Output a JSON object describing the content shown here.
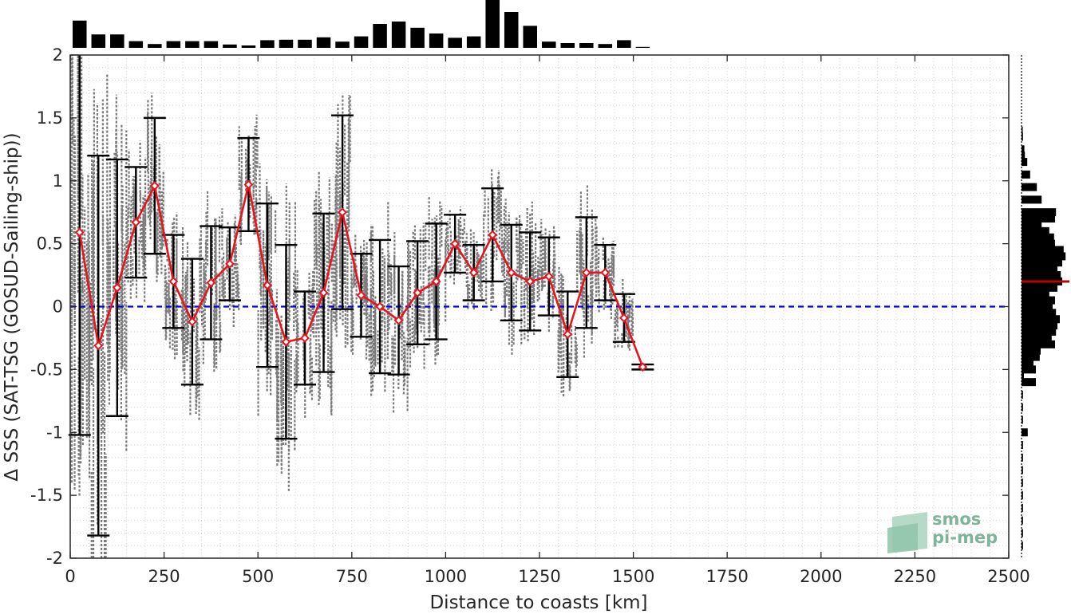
{
  "chart_data": {
    "type": "errorbar-line",
    "xlabel": "Distance to coasts [km]",
    "ylabel": "Δ SSS (SAT-TSG (GOSUD-Sailing-ship))",
    "xlim": [
      0,
      2500
    ],
    "ylim": [
      -2,
      2
    ],
    "x_ticks": [
      0,
      250,
      500,
      750,
      1000,
      1250,
      1500,
      1750,
      2000,
      2250,
      2500
    ],
    "y_ticks": [
      2,
      1.5,
      1,
      0.5,
      0,
      -0.5,
      -1,
      -1.5,
      -2
    ],
    "x_tick_labels": [
      "0",
      "250",
      "500",
      "750",
      "1000",
      "1250",
      "1500",
      "1750",
      "2000",
      "2250",
      "2500"
    ],
    "y_tick_labels": [
      "2",
      "1.5",
      "1",
      "0.5",
      "0",
      "-0.5",
      "-1",
      "-1.5",
      "-2"
    ],
    "grid": true,
    "reference_line": {
      "y": 0,
      "color": "#0000ee",
      "style": "dashed"
    },
    "colors": {
      "mean": "#e8141d",
      "errorbar": "#000000",
      "scatter": "#7a7a7a",
      "hist": "#000000",
      "hist_mean": "#c00000"
    },
    "series": [
      {
        "x": [
          25,
          75,
          125,
          175,
          225,
          275,
          325,
          375,
          425,
          475,
          525,
          575,
          625,
          675,
          725,
          775,
          825,
          875,
          925,
          975,
          1025,
          1075,
          1125,
          1175,
          1225,
          1275,
          1325,
          1375,
          1425,
          1475,
          1525
        ],
        "mean": [
          0.59,
          -0.31,
          0.15,
          0.67,
          0.96,
          0.2,
          -0.12,
          0.19,
          0.34,
          0.97,
          0.17,
          -0.28,
          -0.25,
          0.11,
          0.75,
          0.09,
          0.0,
          -0.11,
          0.11,
          0.2,
          0.5,
          0.27,
          0.57,
          0.27,
          0.2,
          0.24,
          -0.22,
          0.27,
          0.27,
          -0.09,
          -0.48
        ],
        "std": [
          1.61,
          1.51,
          1.02,
          0.44,
          0.54,
          0.37,
          0.5,
          0.45,
          0.29,
          0.37,
          0.65,
          0.77,
          0.37,
          0.63,
          0.77,
          0.33,
          0.53,
          0.43,
          0.41,
          0.46,
          0.23,
          0.22,
          0.37,
          0.38,
          0.39,
          0.31,
          0.34,
          0.44,
          0.22,
          0.19,
          0.02
        ]
      }
    ],
    "scatter_note": "dense gray individual samples",
    "top_histogram": {
      "bin_centers": [
        25,
        75,
        125,
        175,
        225,
        275,
        325,
        375,
        425,
        475,
        525,
        575,
        625,
        675,
        725,
        775,
        825,
        875,
        925,
        975,
        1025,
        1075,
        1125,
        1175,
        1225,
        1275,
        1325,
        1375,
        1425,
        1475,
        1525
      ],
      "values": [
        0.57,
        0.28,
        0.28,
        0.14,
        0.08,
        0.14,
        0.14,
        0.14,
        0.07,
        0.05,
        0.16,
        0.17,
        0.17,
        0.22,
        0.13,
        0.24,
        0.5,
        0.55,
        0.42,
        0.3,
        0.21,
        0.24,
        1.0,
        0.75,
        0.46,
        0.13,
        0.1,
        0.1,
        0.08,
        0.16,
        0.02
      ]
    },
    "right_histogram": {
      "bin_centers": [
        1.4,
        1.35,
        1.25,
        1.2,
        1.15,
        1.05,
        0.95,
        0.85,
        0.75,
        0.7,
        0.65,
        0.6,
        0.55,
        0.5,
        0.45,
        0.4,
        0.35,
        0.3,
        0.25,
        0.2,
        0.15,
        0.1,
        0.05,
        0.0,
        -0.05,
        -0.1,
        -0.15,
        -0.2,
        -0.25,
        -0.3,
        -0.35,
        -0.4,
        -0.45,
        -0.5,
        -0.55,
        -0.6,
        -0.7,
        -0.8,
        -0.9,
        -1.0,
        -1.1,
        -1.2,
        -1.3,
        -1.4,
        -1.5,
        -1.6,
        -1.7,
        -1.8,
        -1.9
      ],
      "values": [
        0.02,
        0.03,
        0.06,
        0.07,
        0.12,
        0.18,
        0.32,
        0.42,
        0.72,
        0.7,
        0.42,
        0.58,
        0.68,
        0.7,
        0.88,
        0.92,
        0.85,
        0.75,
        0.82,
        0.85,
        0.75,
        0.58,
        0.7,
        0.65,
        0.72,
        0.8,
        0.75,
        0.72,
        0.63,
        0.7,
        0.4,
        0.38,
        0.25,
        0.3,
        0.05,
        0.3,
        0.03,
        0.03,
        0.03,
        0.13,
        0.03,
        0.03,
        0.03,
        0.03,
        0.03,
        0.03,
        0.03,
        0.03,
        0.03
      ],
      "mean_marker": 0.2
    }
  },
  "watermark": {
    "line1": "smos",
    "line2": "pi-mep"
  }
}
